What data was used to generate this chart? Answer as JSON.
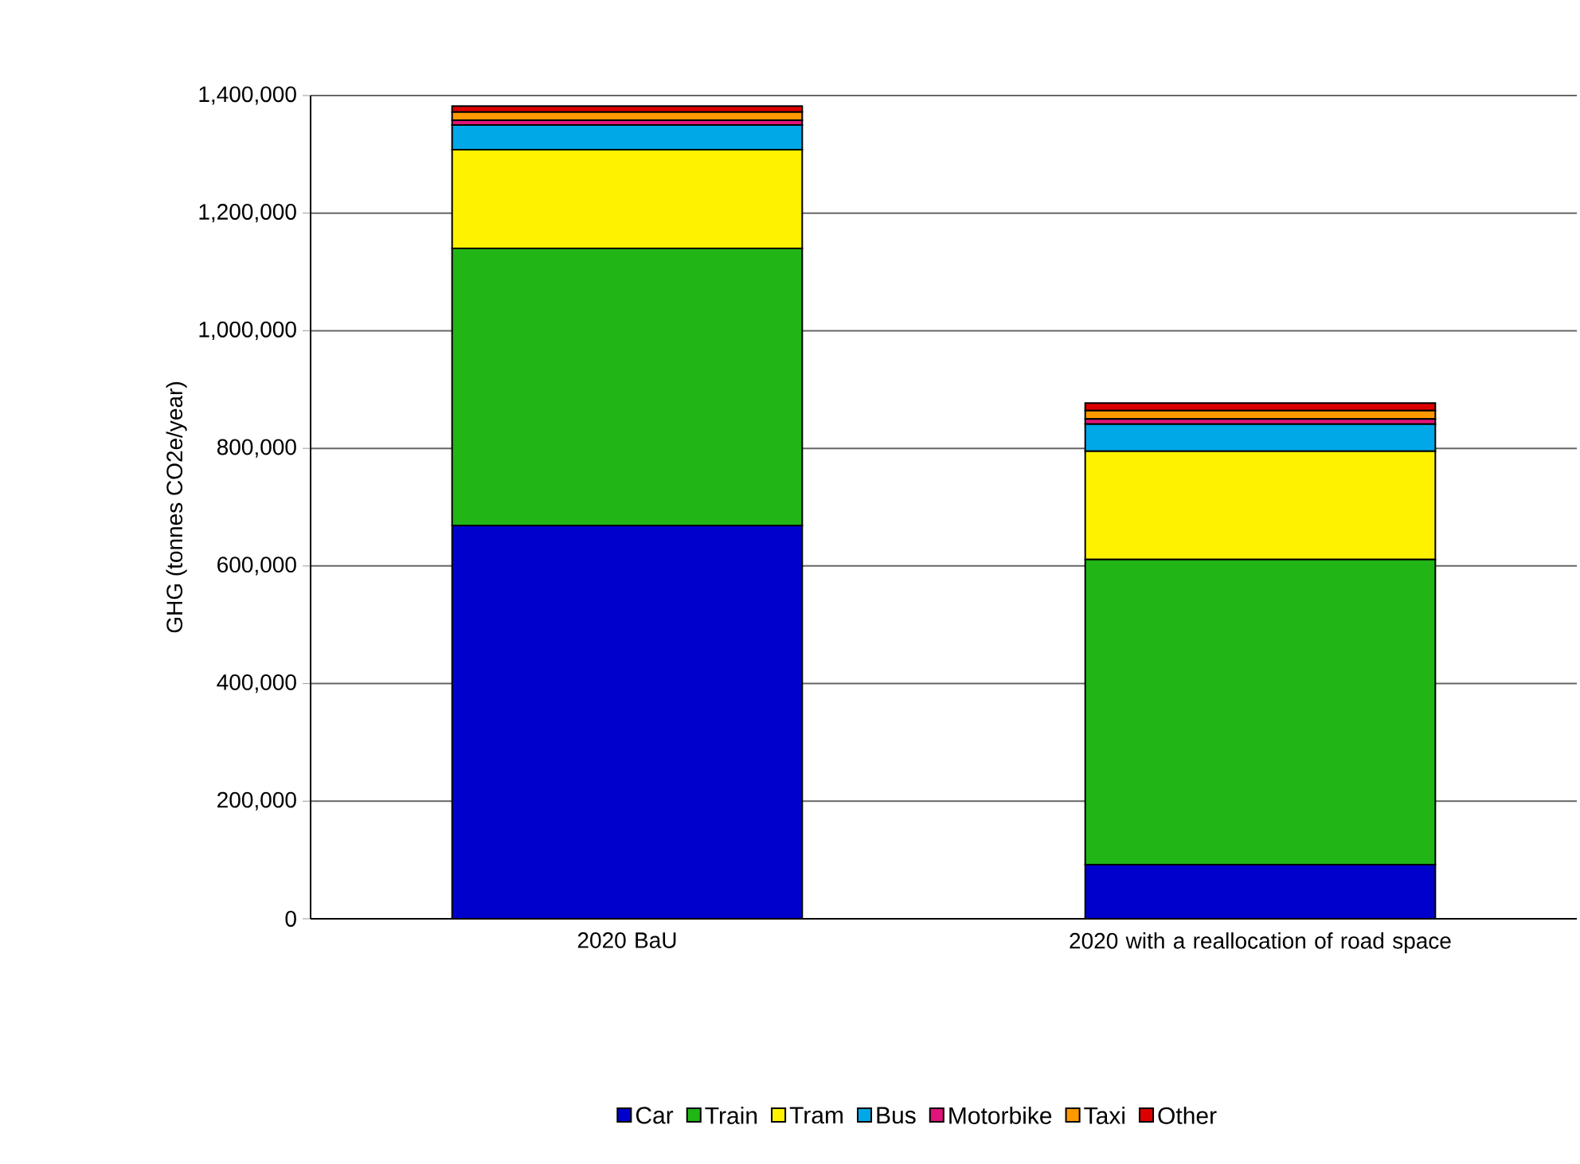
{
  "chart_data": {
    "type": "bar",
    "stacked": true,
    "ylabel": "GHG (tonnes CO2e/year)",
    "categories": [
      "2020 BaU",
      "2020 with a reallocation of road space"
    ],
    "series": [
      {
        "name": "Car",
        "color": "#0000cc",
        "values": [
          669000,
          92000
        ]
      },
      {
        "name": "Train",
        "color": "#21b616",
        "values": [
          471000,
          519000
        ]
      },
      {
        "name": "Tram",
        "color": "#fff200",
        "values": [
          168000,
          184000
        ]
      },
      {
        "name": "Bus",
        "color": "#00a8e8",
        "values": [
          42000,
          46000
        ]
      },
      {
        "name": "Motorbike",
        "color": "#e0147a",
        "values": [
          8000,
          9000
        ]
      },
      {
        "name": "Taxi",
        "color": "#ff9900",
        "values": [
          14000,
          14000
        ]
      },
      {
        "name": "Other",
        "color": "#dd0000",
        "values": [
          10000,
          13000
        ]
      }
    ],
    "ylim": [
      0,
      1400000
    ],
    "yticks": [
      0,
      {
        "value": 200000,
        "label": "200,000"
      },
      {
        "value": 400000,
        "label": "400,000"
      },
      {
        "value": 600000,
        "label": "600,000"
      },
      {
        "value": 800000,
        "label": "800,000"
      },
      {
        "value": 1000000,
        "label": "1,000,000"
      },
      {
        "value": 1200000,
        "label": "1,200,000"
      },
      {
        "value": 1400000,
        "label": "1,400,000"
      }
    ],
    "grid": "y",
    "legend": "bottom"
  }
}
